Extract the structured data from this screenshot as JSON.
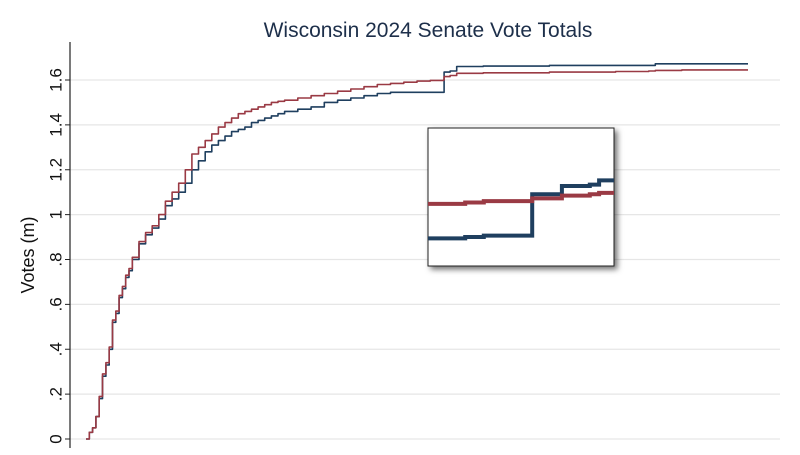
{
  "chart_data": {
    "type": "line",
    "title": "Wisconsin 2024 Senate Vote Totals",
    "xlabel": "",
    "ylabel": "Votes (m)",
    "ylim": [
      0,
      1.75
    ],
    "xlim": [
      0,
      100
    ],
    "yticks": [
      0,
      0.2,
      0.4,
      0.6,
      0.8,
      1,
      1.2,
      1.4,
      1.6
    ],
    "ytick_labels": [
      "0",
      ".2",
      ".4",
      ".6",
      ".8",
      "1",
      "1.2",
      "1.4",
      "1.6"
    ],
    "grid": true,
    "legend": "none",
    "colors": {
      "series_blue": "#1f3f5f",
      "series_red": "#9a3a44",
      "grid": "#e6e6e6",
      "axis": "#222222"
    },
    "series": [
      {
        "color": "#1f3f5f",
        "x": [
          0,
          0.5,
          1,
          1.5,
          2,
          2.5,
          3,
          3.5,
          4,
          4.5,
          5,
          5.5,
          6,
          6.5,
          7,
          8,
          9,
          10,
          11,
          12,
          13,
          14,
          15,
          16,
          17,
          18,
          19,
          20,
          21,
          22,
          23,
          24,
          25,
          26,
          27,
          28,
          29,
          30,
          32,
          34,
          36,
          38,
          40,
          42,
          44,
          46,
          48,
          50,
          52,
          54,
          54.1,
          55,
          56,
          60,
          70,
          80,
          85,
          86,
          90,
          95,
          100
        ],
        "y": [
          0,
          0.03,
          0.05,
          0.1,
          0.18,
          0.28,
          0.33,
          0.4,
          0.52,
          0.56,
          0.63,
          0.67,
          0.72,
          0.75,
          0.8,
          0.87,
          0.91,
          0.94,
          0.98,
          1.04,
          1.07,
          1.1,
          1.14,
          1.2,
          1.24,
          1.28,
          1.31,
          1.33,
          1.35,
          1.37,
          1.38,
          1.39,
          1.41,
          1.42,
          1.43,
          1.44,
          1.45,
          1.46,
          1.47,
          1.48,
          1.5,
          1.51,
          1.52,
          1.53,
          1.54,
          1.545,
          1.545,
          1.545,
          1.545,
          1.545,
          1.635,
          1.64,
          1.66,
          1.662,
          1.665,
          1.665,
          1.665,
          1.672,
          1.672,
          1.672,
          1.672
        ]
      },
      {
        "color": "#9a3a44",
        "x": [
          0,
          0.5,
          1,
          1.5,
          2,
          2.5,
          3,
          3.5,
          4,
          4.5,
          5,
          5.5,
          6,
          6.5,
          7,
          8,
          9,
          10,
          11,
          12,
          13,
          14,
          15,
          16,
          17,
          18,
          19,
          20,
          21,
          22,
          23,
          24,
          25,
          26,
          27,
          28,
          29,
          30,
          32,
          34,
          36,
          38,
          40,
          42,
          44,
          46,
          48,
          50,
          52,
          54,
          54.1,
          55,
          56,
          60,
          70,
          80,
          85,
          86,
          90,
          95,
          100
        ],
        "y": [
          0,
          0.03,
          0.05,
          0.1,
          0.19,
          0.29,
          0.34,
          0.41,
          0.53,
          0.57,
          0.64,
          0.68,
          0.73,
          0.76,
          0.81,
          0.88,
          0.92,
          0.95,
          1.0,
          1.06,
          1.1,
          1.14,
          1.2,
          1.27,
          1.3,
          1.33,
          1.36,
          1.39,
          1.41,
          1.43,
          1.45,
          1.46,
          1.47,
          1.48,
          1.49,
          1.5,
          1.505,
          1.51,
          1.52,
          1.53,
          1.54,
          1.55,
          1.56,
          1.57,
          1.58,
          1.585,
          1.59,
          1.595,
          1.598,
          1.6,
          1.615,
          1.62,
          1.63,
          1.632,
          1.635,
          1.638,
          1.64,
          1.643,
          1.645,
          1.645,
          1.645
        ]
      }
    ],
    "inset": {
      "type": "line",
      "description_hidden": true,
      "series": [
        {
          "color": "#1f3f5f",
          "x": [
            0,
            10,
            20,
            30,
            40,
            52,
            55,
            56,
            70,
            72,
            85,
            87,
            92,
            100
          ],
          "y": [
            0.2,
            0.2,
            0.21,
            0.22,
            0.22,
            0.22,
            0.22,
            0.52,
            0.52,
            0.58,
            0.58,
            0.59,
            0.62,
            0.62
          ]
        },
        {
          "color": "#9a3a44",
          "x": [
            0,
            10,
            20,
            30,
            40,
            52,
            55,
            56,
            70,
            72,
            85,
            87,
            92,
            100
          ],
          "y": [
            0.45,
            0.45,
            0.46,
            0.47,
            0.47,
            0.47,
            0.47,
            0.49,
            0.49,
            0.51,
            0.51,
            0.52,
            0.53,
            0.53
          ]
        }
      ]
    }
  }
}
